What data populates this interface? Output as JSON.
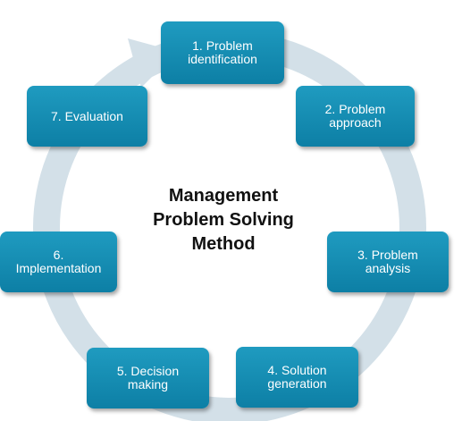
{
  "diagram": {
    "title_lines": [
      "Management",
      "Problem Solving",
      "Method"
    ],
    "steps": [
      {
        "label": "1. Problem\nidentification"
      },
      {
        "label": "2. Problem\napproach"
      },
      {
        "label": "3. Problem\nanalysis"
      },
      {
        "label": "4. Solution\ngeneration"
      },
      {
        "label": "5. Decision\nmaking"
      },
      {
        "label": "6.\nImplementation"
      },
      {
        "label": "7. Evaluation"
      }
    ],
    "colors": {
      "node": "#1a91b8",
      "ring": "#d3e0e8"
    }
  }
}
